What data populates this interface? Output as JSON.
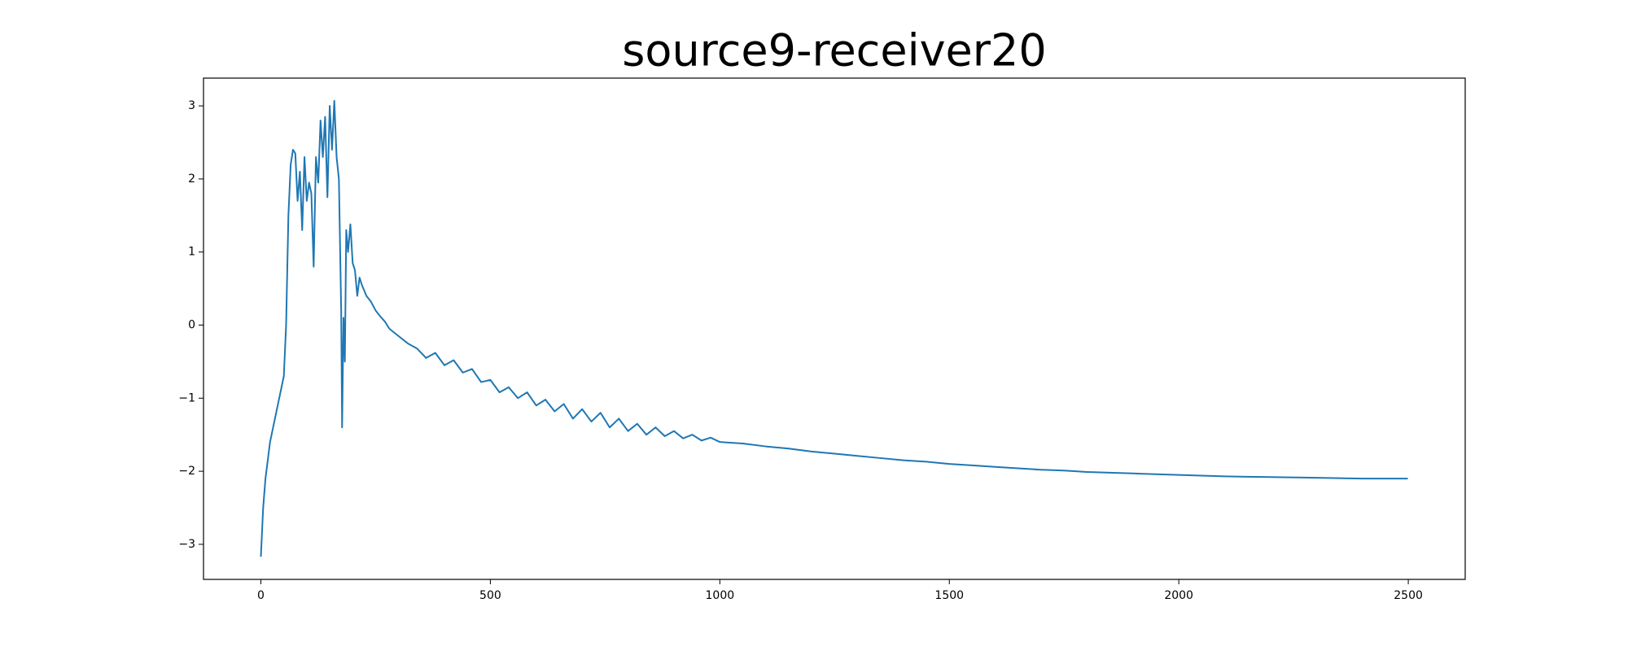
{
  "chart_data": {
    "type": "line",
    "title": "source9-receiver20",
    "x": [
      0,
      5,
      10,
      20,
      30,
      40,
      50,
      55,
      60,
      65,
      70,
      75,
      80,
      85,
      90,
      95,
      100,
      105,
      110,
      115,
      120,
      125,
      130,
      135,
      140,
      145,
      150,
      155,
      160,
      165,
      170,
      175,
      177,
      180,
      183,
      186,
      190,
      195,
      200,
      205,
      210,
      215,
      220,
      230,
      240,
      250,
      260,
      270,
      280,
      290,
      300,
      320,
      340,
      360,
      380,
      400,
      420,
      440,
      460,
      480,
      500,
      520,
      540,
      560,
      580,
      600,
      620,
      640,
      660,
      680,
      700,
      720,
      740,
      760,
      780,
      800,
      820,
      840,
      860,
      880,
      900,
      920,
      940,
      960,
      980,
      1000,
      1050,
      1100,
      1150,
      1200,
      1250,
      1300,
      1350,
      1400,
      1450,
      1500,
      1550,
      1600,
      1650,
      1700,
      1750,
      1800,
      1850,
      1900,
      1950,
      2000,
      2100,
      2200,
      2300,
      2400,
      2499
    ],
    "series": [
      {
        "color": "#1f77b4",
        "values": [
          -3.17,
          -2.5,
          -2.1,
          -1.6,
          -1.3,
          -1.0,
          -0.7,
          0.0,
          1.5,
          2.2,
          2.4,
          2.35,
          1.7,
          2.1,
          1.3,
          2.3,
          1.7,
          1.95,
          1.8,
          0.8,
          2.3,
          1.95,
          2.8,
          2.3,
          2.85,
          1.75,
          3.0,
          2.4,
          3.07,
          2.3,
          2.0,
          0.2,
          -1.4,
          0.1,
          -0.5,
          1.3,
          1.0,
          1.38,
          0.85,
          0.75,
          0.4,
          0.65,
          0.55,
          0.4,
          0.32,
          0.2,
          0.12,
          0.05,
          -0.05,
          -0.1,
          -0.15,
          -0.25,
          -0.32,
          -0.45,
          -0.38,
          -0.55,
          -0.48,
          -0.65,
          -0.6,
          -0.78,
          -0.75,
          -0.92,
          -0.85,
          -1.0,
          -0.92,
          -1.1,
          -1.02,
          -1.18,
          -1.08,
          -1.28,
          -1.15,
          -1.32,
          -1.2,
          -1.4,
          -1.28,
          -1.45,
          -1.35,
          -1.5,
          -1.4,
          -1.52,
          -1.45,
          -1.55,
          -1.5,
          -1.58,
          -1.54,
          -1.6,
          -1.62,
          -1.66,
          -1.69,
          -1.73,
          -1.76,
          -1.79,
          -1.82,
          -1.85,
          -1.87,
          -1.9,
          -1.92,
          -1.94,
          -1.96,
          -1.98,
          -1.99,
          -2.01,
          -2.02,
          -2.03,
          -2.04,
          -2.05,
          -2.07,
          -2.08,
          -2.09,
          -2.1,
          -2.1
        ]
      }
    ],
    "xlim": [
      -125,
      2624
    ],
    "ylim": [
      -3.48,
      3.38
    ],
    "xticks": [
      0,
      500,
      1000,
      1500,
      2000,
      2500
    ],
    "yticks": [
      {
        "value": -3,
        "label": "−3"
      },
      {
        "value": -2,
        "label": "−2"
      },
      {
        "value": -1,
        "label": "−1"
      },
      0,
      1,
      2,
      3
    ]
  }
}
